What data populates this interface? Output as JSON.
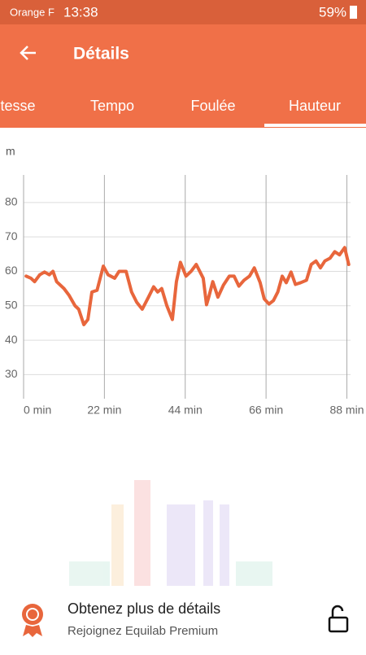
{
  "status_bar": {
    "carrier": "Orange F",
    "time": "13:38",
    "battery": "59%"
  },
  "app_bar": {
    "title": "Détails"
  },
  "tabs": [
    "tesse",
    "Tempo",
    "Foulée",
    "Hauteur"
  ],
  "chart_data": {
    "type": "line",
    "y_label": "m",
    "grid": true,
    "series": [
      {
        "name": "Hauteur",
        "color": "#e8663c",
        "x": [
          0.7,
          2,
          3,
          4.4,
          5.7,
          7,
          8,
          9,
          11,
          12.4,
          14,
          15,
          16.4,
          17.5,
          18.6,
          20,
          21.7,
          23,
          24.8,
          26,
          27.9,
          29.4,
          30.8,
          32.3,
          34,
          35.4,
          36.5,
          37.6,
          39,
          40.5,
          41.6,
          42.7,
          44.2,
          45.6,
          47,
          48.9,
          49.8,
          50.4,
          51.5,
          52.9,
          54.4,
          56,
          57.3,
          58.6,
          60,
          61.5,
          62.8,
          64.4,
          65.5,
          66.8,
          68,
          69.2,
          70.4,
          71.5,
          72.8,
          74,
          75.4,
          77,
          78.3,
          79.6,
          80.8,
          82,
          83.4,
          84.7,
          86,
          87.4,
          88.5
        ],
        "values": [
          58.6,
          58,
          57,
          59,
          59.8,
          59,
          60,
          57,
          55,
          53,
          50,
          49,
          44.5,
          46,
          54,
          54.5,
          61.5,
          59,
          58,
          60,
          60,
          54,
          51,
          49,
          52.5,
          55.5,
          54,
          55,
          50,
          46,
          57,
          62.6,
          58.6,
          60,
          62,
          58,
          50.3,
          52.5,
          57,
          52.5,
          56,
          58.6,
          58.6,
          55.7,
          57.4,
          58.6,
          61,
          56.7,
          52,
          50.5,
          51.5,
          54,
          58.6,
          56.7,
          59.8,
          56.2,
          56.7,
          57.4,
          62,
          63,
          61,
          63,
          63.8,
          65.7,
          64.8,
          66.9,
          62
        ]
      }
    ],
    "xlim": [
      0,
      89
    ],
    "ylim": [
      23,
      88
    ],
    "xticks": [
      {
        "value": 0,
        "label": "0 min"
      },
      {
        "value": 22,
        "label": "22 min"
      },
      {
        "value": 44,
        "label": "44 min"
      },
      {
        "value": 66,
        "label": "66 min"
      },
      {
        "value": 88,
        "label": "88 min"
      }
    ],
    "yticks": [
      30,
      40,
      50,
      60,
      70,
      80
    ]
  },
  "premium": {
    "title": "Obtenez plus de détails",
    "subtitle": "Rejoignez Equilab Premium"
  }
}
